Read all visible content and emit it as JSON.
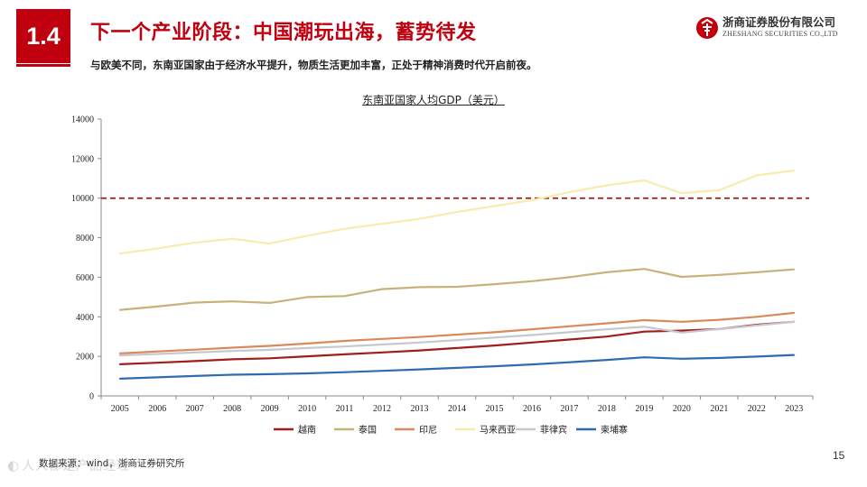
{
  "header": {
    "section_number": "1.4",
    "title": "下一个产业阶段：中国潮玩出海，蓄势待发",
    "subtitle": "与欧美不同，东南亚国家由于经济水平提升，物质生活更加丰富，正处于精神消费时代开启前夜。",
    "logo_cn": "浙商证券股份有限公司",
    "logo_en": "ZHESHANG SECURITIES CO.,LTD"
  },
  "footer": {
    "source": "数据来源：wind，浙商证券研究所",
    "page_number": "15",
    "watermark": "人人都是产品经理"
  },
  "colors": {
    "brand_red": "#c0000f"
  },
  "chart_data": {
    "type": "line",
    "title": "东南亚国家人均GDP（美元）",
    "xlabel": "",
    "ylabel": "",
    "ylim": [
      0,
      14000
    ],
    "yticks": [
      0,
      2000,
      4000,
      6000,
      8000,
      10000,
      12000,
      14000
    ],
    "grid": false,
    "categories": [
      "2005",
      "2006",
      "2007",
      "2008",
      "2009",
      "2010",
      "2011",
      "2012",
      "2013",
      "2014",
      "2015",
      "2016",
      "2017",
      "2018",
      "2019",
      "2020",
      "2021",
      "2022",
      "2023"
    ],
    "reference_line": {
      "value": 10000,
      "label": "",
      "color": "#9e1b1b",
      "style": "dashed"
    },
    "legend_position": "bottom",
    "series": [
      {
        "name": "越南",
        "color": "#a31c1c",
        "values": [
          1600,
          1680,
          1760,
          1850,
          1900,
          2000,
          2100,
          2200,
          2300,
          2420,
          2550,
          2700,
          2850,
          3000,
          3250,
          3300,
          3380,
          3600,
          3750
        ]
      },
      {
        "name": "泰国",
        "color": "#c9b27a",
        "values": [
          4350,
          4520,
          4720,
          4780,
          4700,
          5000,
          5050,
          5400,
          5500,
          5520,
          5650,
          5800,
          6000,
          6250,
          6420,
          6020,
          6120,
          6250,
          6400
        ]
      },
      {
        "name": "印尼",
        "color": "#d98a5a",
        "values": [
          2150,
          2250,
          2340,
          2440,
          2530,
          2650,
          2780,
          2880,
          2980,
          3100,
          3220,
          3370,
          3520,
          3670,
          3830,
          3750,
          3850,
          4000,
          4200
        ]
      },
      {
        "name": "马来西亚",
        "color": "#f7ecae",
        "values": [
          7200,
          7450,
          7750,
          7950,
          7700,
          8100,
          8450,
          8700,
          8950,
          9300,
          9600,
          9900,
          10300,
          10650,
          10900,
          10250,
          10400,
          11150,
          11400
        ]
      },
      {
        "name": "菲律宾",
        "color": "#c7c7cf",
        "values": [
          2050,
          2120,
          2200,
          2270,
          2330,
          2420,
          2500,
          2600,
          2700,
          2820,
          2950,
          3080,
          3220,
          3370,
          3500,
          3200,
          3380,
          3560,
          3750
        ]
      },
      {
        "name": "柬埔寨",
        "color": "#2e6bb0",
        "values": [
          870,
          940,
          1010,
          1070,
          1100,
          1140,
          1200,
          1270,
          1340,
          1420,
          1500,
          1590,
          1700,
          1820,
          1950,
          1880,
          1920,
          1990,
          2070
        ]
      }
    ]
  }
}
